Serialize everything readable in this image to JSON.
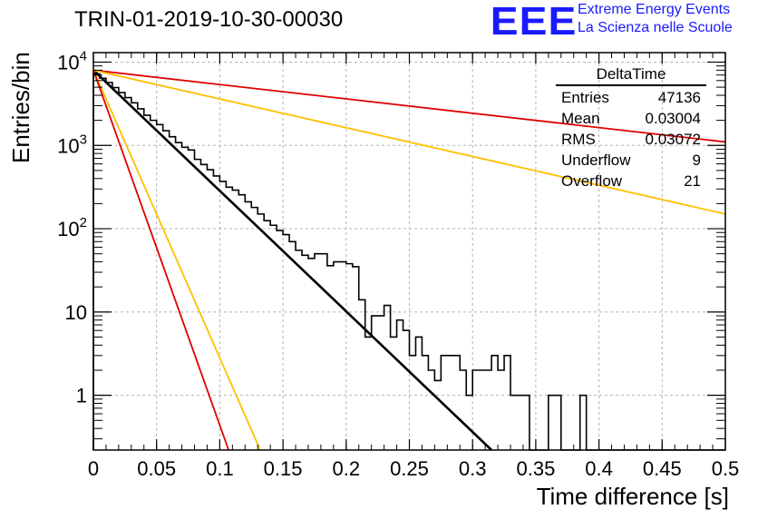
{
  "header": {
    "title": "TRIN-01-2019-10-30-00030",
    "logo_text": "EEE",
    "org_line1": "Extreme Energy Events",
    "org_line2": "La Scienza nelle Scuole"
  },
  "stats_box": {
    "name": "DeltaTime",
    "rows": [
      {
        "label": "Entries",
        "value": "47136"
      },
      {
        "label": "Mean",
        "value": "0.03004"
      },
      {
        "label": "RMS",
        "value": "0.03072"
      },
      {
        "label": "Underflow",
        "value": "9"
      },
      {
        "label": "Overflow",
        "value": "21"
      }
    ]
  },
  "colors": {
    "histogram": "#000000",
    "fit": "#000000",
    "red": "#e00000",
    "orange": "#ffbf00",
    "grid": "#b4b4b4",
    "logo": "#1a1aff"
  },
  "chart_data": {
    "type": "line",
    "xlabel": "Time difference [s]",
    "ylabel": "Entries/bin",
    "xlim": [
      0,
      0.5
    ],
    "ylim": [
      0.22,
      13000
    ],
    "yscale": "log",
    "grid": true,
    "x_ticks": [
      "0",
      "0.05",
      "0.1",
      "0.15",
      "0.2",
      "0.25",
      "0.3",
      "0.35",
      "0.4",
      "0.45",
      "0.5"
    ],
    "y_ticks": [
      {
        "value": 1,
        "label": "1"
      },
      {
        "value": 10,
        "label": "10"
      },
      {
        "value": 100,
        "label": "10",
        "exp": "2"
      },
      {
        "value": 1000,
        "label": "10",
        "exp": "3"
      },
      {
        "value": 10000,
        "label": "10",
        "exp": "4"
      }
    ],
    "histogram": {
      "bin_width": 0.005,
      "values": [
        7200,
        6400,
        5700,
        4950,
        4300,
        3750,
        3250,
        2750,
        2300,
        2000,
        1780,
        1500,
        1270,
        1080,
        950,
        880,
        680,
        590,
        510,
        430,
        370,
        315,
        290,
        255,
        210,
        180,
        150,
        125,
        110,
        95,
        85,
        70,
        55,
        48,
        44,
        50,
        50,
        36,
        40,
        40,
        38,
        35,
        14,
        5,
        9,
        9,
        12,
        5,
        8,
        6,
        3,
        5,
        3,
        2,
        1.5,
        3,
        3,
        3,
        2,
        1,
        2,
        2,
        2,
        3,
        2,
        3,
        1,
        1,
        1,
        0,
        0,
        0,
        1,
        1,
        0,
        0,
        0,
        1,
        0,
        0,
        0,
        0,
        0,
        0,
        0,
        0,
        0,
        0,
        0,
        0,
        0,
        0,
        0,
        0,
        0,
        0,
        0,
        0,
        0,
        0
      ]
    },
    "series": [
      {
        "type": "exponential",
        "color": "#000000",
        "points": [
          {
            "x": 0,
            "y": 8000
          },
          {
            "x": 0.315,
            "y": 0.22
          }
        ]
      },
      {
        "type": "exponential",
        "color": "#e00000",
        "points": [
          {
            "x": 0,
            "y": 8000
          },
          {
            "x": 0.5,
            "y": 1100
          }
        ]
      },
      {
        "type": "exponential",
        "color": "#ffbf00",
        "points": [
          {
            "x": 0,
            "y": 8000
          },
          {
            "x": 0.5,
            "y": 150
          }
        ]
      },
      {
        "type": "exponential",
        "color": "#ffbf00",
        "points": [
          {
            "x": 0,
            "y": 8000
          },
          {
            "x": 0.132,
            "y": 0.22
          }
        ]
      },
      {
        "type": "exponential",
        "color": "#e00000",
        "points": [
          {
            "x": 0,
            "y": 8000
          },
          {
            "x": 0.107,
            "y": 0.22
          }
        ]
      }
    ]
  }
}
